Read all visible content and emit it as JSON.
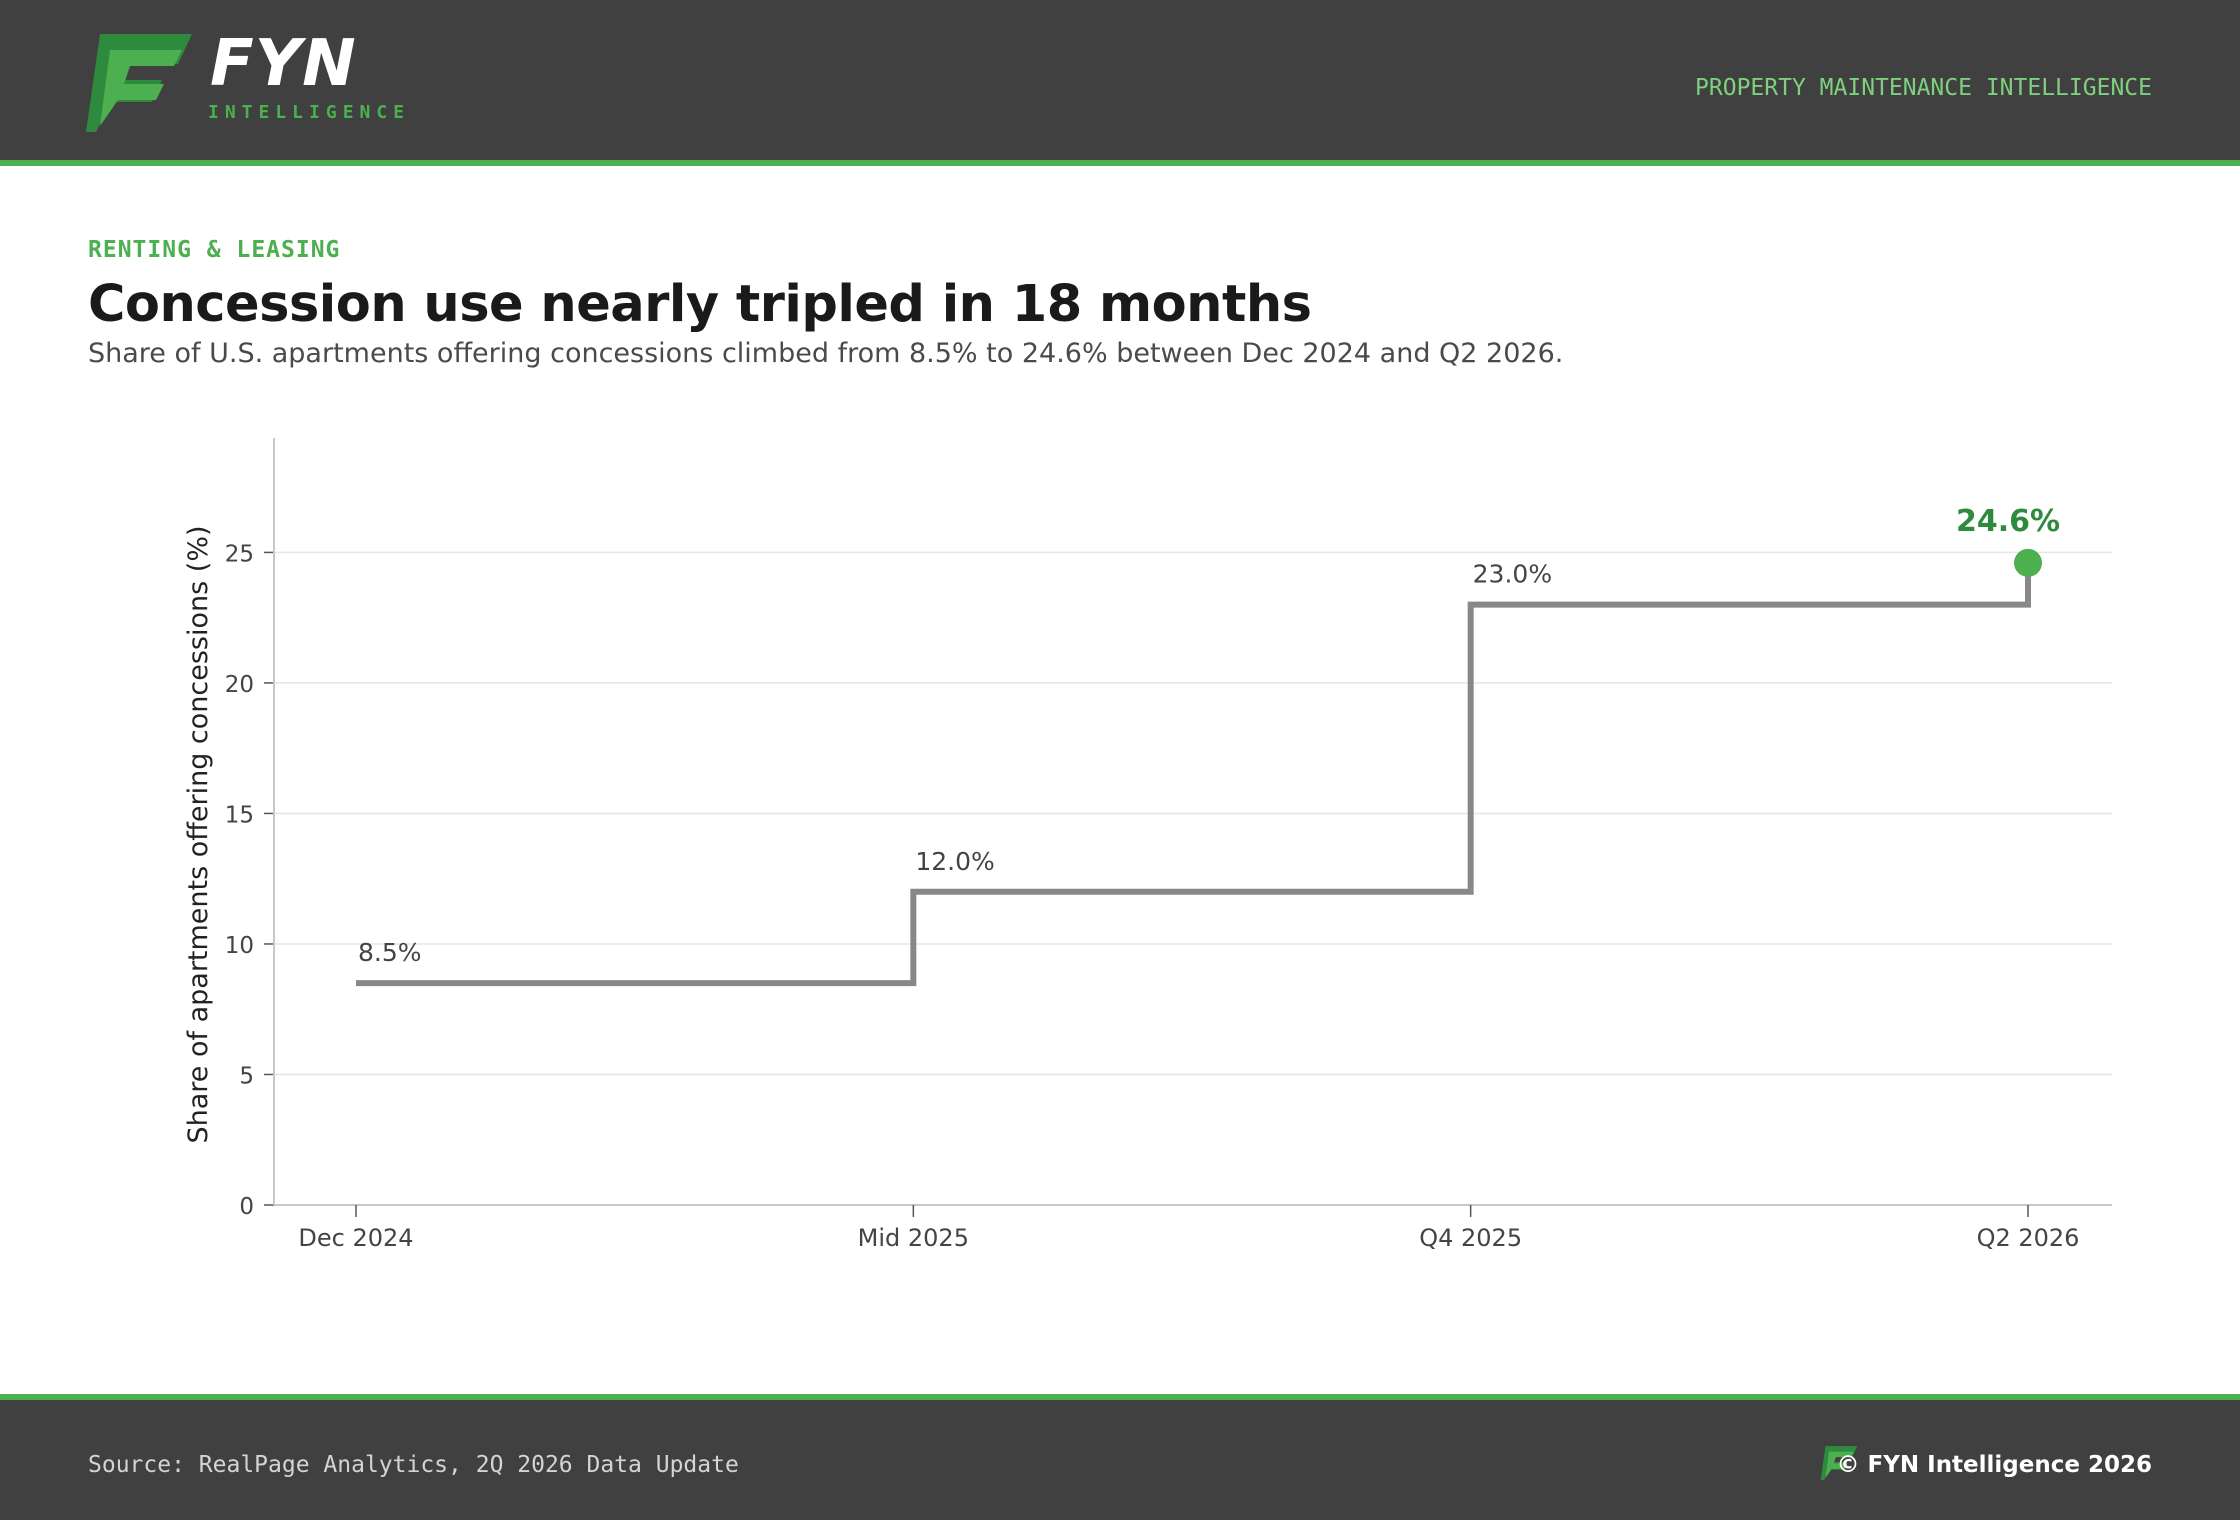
{
  "header": {
    "brand": "FYN",
    "brand_sub": "INTELLIGENCE",
    "tagline": "PROPERTY MAINTENANCE INTELLIGENCE",
    "logo_icon": "fyn-f-logo-icon"
  },
  "article": {
    "eyebrow": "RENTING & LEASING",
    "title": "Concession use nearly tripled in 18 months",
    "subtitle": "Share of U.S. apartments offering concessions climbed from 8.5% to 24.6% between Dec 2024 and Q2 2026."
  },
  "colors": {
    "accent": "#4caf50",
    "accent_dark": "#2e8b3e",
    "accent_light": "#7ed07e",
    "header_bg": "#404040",
    "line": "#888888",
    "grid": "#e6e6e6"
  },
  "chart_data": {
    "type": "line",
    "step": true,
    "categories": [
      "Dec 2024",
      "Mid 2025",
      "Q4 2025",
      "Q2 2026"
    ],
    "values": [
      8.5,
      12.0,
      23.0,
      24.6
    ],
    "point_labels": [
      "8.5%",
      "12.0%",
      "23.0%",
      "24.6%"
    ],
    "highlight_index": 3,
    "ylabel": "Share of apartments offering concessions (%)",
    "xlabel": "",
    "ylim": [
      0,
      29
    ],
    "yticks": [
      0,
      5,
      10,
      15,
      20,
      25
    ],
    "grid": true
  },
  "footer": {
    "source": "Source: RealPage Analytics, 2Q 2026 Data Update",
    "copyright": "© FYN Intelligence 2026",
    "logo_icon": "fyn-f-logo-icon"
  }
}
